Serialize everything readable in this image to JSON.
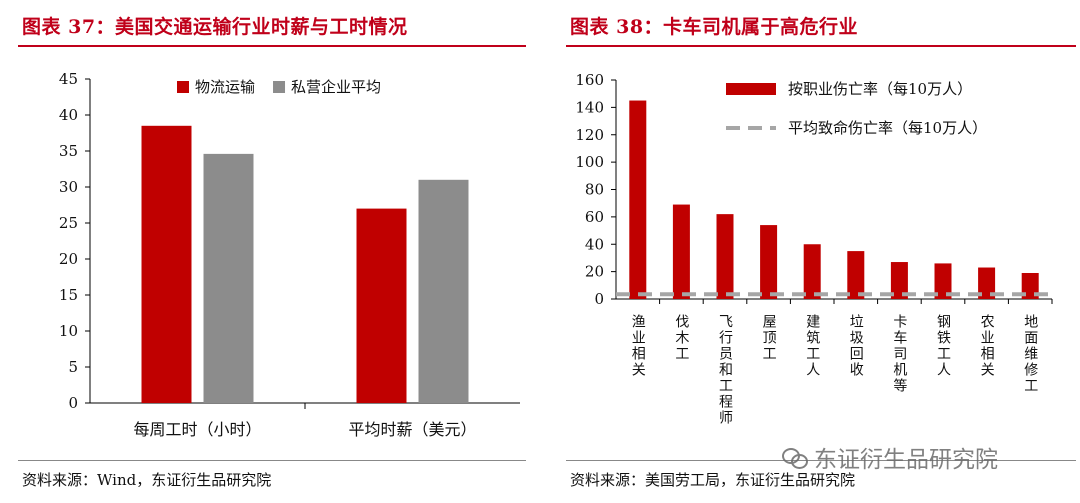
{
  "panels": {
    "left": {
      "title": "图表 37：美国交通运输行业时薪与工时情况",
      "source": "资料来源：Wind，东证衍生品研究院"
    },
    "right": {
      "title": "图表 38：卡车司机属于高危行业",
      "source": "资料来源：美国劳工局，东证衍生品研究院"
    }
  },
  "watermark": {
    "text": "东证衍生品研究院",
    "icon": "wechat-icon"
  },
  "colors": {
    "red": "#c00000",
    "gray": "#8c8c8c",
    "title_red": "#c0001a"
  },
  "chart_data": [
    {
      "type": "bar",
      "categories": [
        "每周工时（小时）",
        "平均时薪（美元）"
      ],
      "series": [
        {
          "name": "物流运输",
          "values": [
            38.5,
            27
          ],
          "color": "#c00000"
        },
        {
          "name": "私营企业平均",
          "values": [
            34.6,
            31
          ],
          "color": "#8c8c8c"
        }
      ],
      "ylim": [
        0,
        45
      ],
      "yticks": [
        0,
        5,
        10,
        15,
        20,
        25,
        30,
        35,
        40,
        45
      ],
      "legend": "top-center",
      "grid": false
    },
    {
      "type": "bar",
      "categories": [
        "渔业相关",
        "伐木工",
        "飞行员和工程师",
        "屋顶工",
        "建筑工人",
        "垃圾回收",
        "卡车司机等",
        "钢铁工人",
        "农业相关",
        "地面维修工"
      ],
      "series": [
        {
          "name": "按职业伤亡率（每10万人）",
          "values": [
            145,
            69,
            62,
            54,
            40,
            35,
            27,
            26,
            23,
            19
          ],
          "color": "#c00000",
          "kind": "bar"
        },
        {
          "name": "平均致命伤亡率（每10万人）",
          "values": [
            3.5,
            3.5,
            3.5,
            3.5,
            3.5,
            3.5,
            3.5,
            3.5,
            3.5,
            3.5
          ],
          "color": "#a6a6a6",
          "kind": "dashed-line"
        }
      ],
      "ylim": [
        0,
        160
      ],
      "yticks": [
        0,
        20,
        40,
        60,
        80,
        100,
        120,
        140,
        160
      ],
      "legend": "top-right",
      "grid": false
    }
  ]
}
